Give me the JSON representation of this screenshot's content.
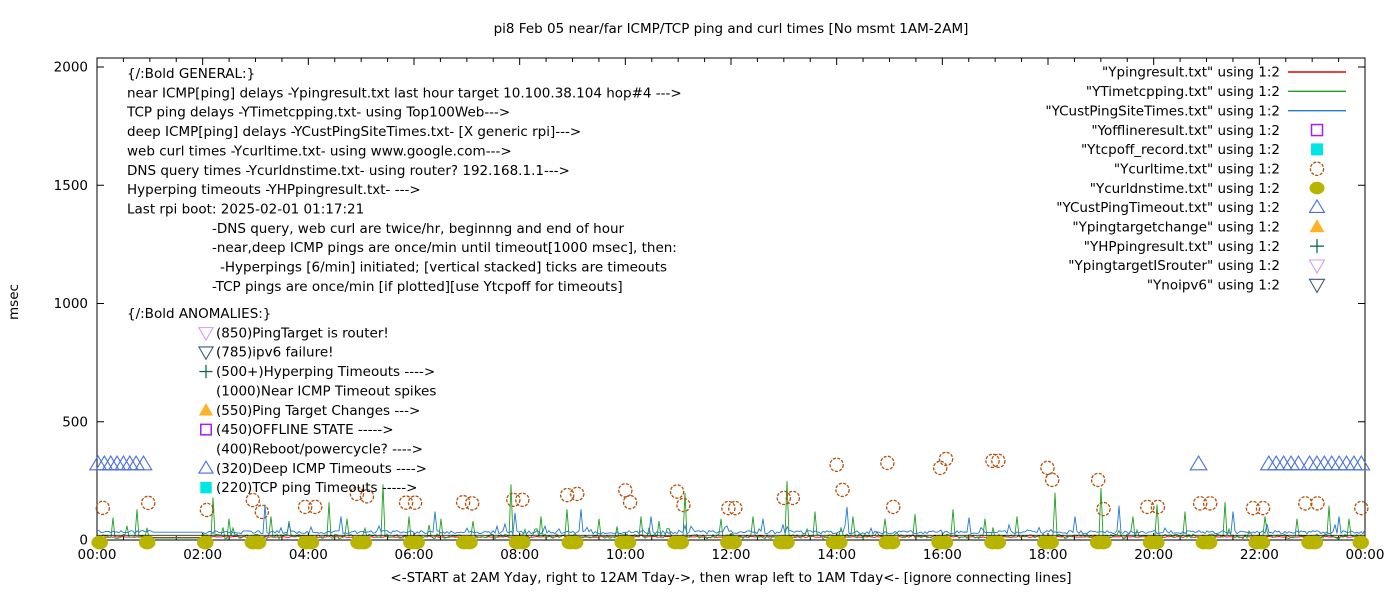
{
  "chart_data": {
    "type": "line",
    "title": "pi8 Feb 05  near/far ICMP/TCP ping and curl times [No msmt 1AM-2AM]",
    "ylabel": "msec",
    "xlabel": "<-START at 2AM Yday, right to 12AM Tday->, then wrap left to 1AM Tday<- [ignore connecting lines]",
    "ylim": [
      0,
      2000
    ],
    "xlim_hours": [
      0,
      24
    ],
    "y_ticks": [
      0,
      500,
      1000,
      1500,
      2000
    ],
    "x_tick_labels": [
      "00:00",
      "02:00",
      "04:00",
      "06:00",
      "08:00",
      "10:00",
      "12:00",
      "14:00",
      "16:00",
      "18:00",
      "20:00",
      "22:00",
      "00:00"
    ],
    "no_measurement_window_hours": [
      1,
      2
    ],
    "legend": [
      {
        "label": "\"Ypingresult.txt\" using 1:2",
        "marker": "line",
        "color": "#e60000"
      },
      {
        "label": "\"YTimetcpping.txt\" using 1:2",
        "marker": "line",
        "color": "#21a121"
      },
      {
        "label": "\"YCustPingSiteTimes.txt\" using 1:2",
        "marker": "line",
        "color": "#2479d4"
      },
      {
        "label": "\"Yofflineresult.txt\" using 1:2",
        "marker": "open-square",
        "color": "#a020f0"
      },
      {
        "label": "\"Ytcpoff_record.txt\" using 1:2",
        "marker": "filled-square",
        "color": "#00e5e5"
      },
      {
        "label": "\"Ycurltime.txt\" using 1:2",
        "marker": "open-circle",
        "color": "#b1500b"
      },
      {
        "label": "\"Ycurldnstime.txt\" using 1:2",
        "marker": "filled-circle",
        "color": "#b9b400"
      },
      {
        "label": "\"YCustPingTimeout.txt\" using 1:2",
        "marker": "open-triangle-up",
        "color": "#4b6fdc"
      },
      {
        "label": "\"Ypingtargetchange\" using 1:2",
        "marker": "filled-triangle-up",
        "color": "#ffb127"
      },
      {
        "label": "\"YHPpingresult.txt\" using 1:2",
        "marker": "plus",
        "color": "#0a6b4a"
      },
      {
        "label": "\"YpingtargetISrouter\" using 1:2",
        "marker": "open-triangle-down",
        "color": "#cf9ef2"
      },
      {
        "label": "\"Ynoipv6\" using 1:2",
        "marker": "open-triangle-down",
        "color": "#3a5a74"
      }
    ],
    "annotations": {
      "general": [
        {
          "text": "{/:Bold GENERAL:}",
          "indent": 0
        },
        {
          "text": "near ICMP[ping] delays -Ypingresult.txt last hour target 10.100.38.104 hop#4 --->",
          "indent": 0
        },
        {
          "text": "TCP ping delays -YTimetcpping.txt- using Top100Web--->",
          "indent": 0
        },
        {
          "text": "deep ICMP[ping] delays -YCustPingSiteTimes.txt- [X generic rpi]--->",
          "indent": 0
        },
        {
          "text": "web curl times -Ycurltime.txt- using www.google.com--->",
          "indent": 0
        },
        {
          "text": "DNS query times -Ycurldnstime.txt- using router? 192.168.1.1--->",
          "indent": 0
        },
        {
          "text": "Hyperping timeouts -YHPpingresult.txt- --->",
          "indent": 0
        },
        {
          "text": "Last rpi boot: 2025-02-01 01:17:21",
          "indent": 0
        },
        {
          "text": "-DNS query, web curl are twice/hr, beginnng and end of hour",
          "indent": 85
        },
        {
          "text": "-near,deep ICMP pings are once/min until timeout[1000 msec], then:",
          "indent": 85
        },
        {
          "text": "-Hyperpings [6/min] initiated; [vertical stacked] ticks are timeouts",
          "indent": 93
        },
        {
          "text": "-TCP pings are once/min [if plotted][use Ytcpoff for timeouts]",
          "indent": 85
        }
      ],
      "anomalies": [
        {
          "marker": null,
          "color": null,
          "text": "{/:Bold ANOMALIES:}"
        },
        {
          "marker": "open-triangle-down",
          "color": "#cf9ef2",
          "text": "(850)PingTarget is router!"
        },
        {
          "marker": "open-triangle-down",
          "color": "#3a5a74",
          "text": "(785)ipv6 failure!"
        },
        {
          "marker": "plus",
          "color": "#0a6b4a",
          "text": "(500+)Hyperping Timeouts ---->"
        },
        {
          "marker": null,
          "color": null,
          "text": "(1000)Near ICMP Timeout spikes"
        },
        {
          "marker": "filled-triangle-up",
          "color": "#ffb127",
          "text": "(550)Ping Target Changes --->"
        },
        {
          "marker": "open-square",
          "color": "#a020f0",
          "text": "(450)OFFLINE STATE ----->"
        },
        {
          "marker": null,
          "color": null,
          "text": "(400)Reboot/powercycle? ---->"
        },
        {
          "marker": "open-triangle-up",
          "color": "#4b6fdc",
          "text": "(320)Deep ICMP Timeouts ---->"
        },
        {
          "marker": "filled-square",
          "color": "#00e5e5",
          "text": "(220)TCP ping Timeouts ----->"
        }
      ]
    },
    "series": [
      {
        "name": "Ypingresult.txt",
        "style": "noisy-line",
        "color": "#e60000",
        "baseline": 11,
        "noise": 4,
        "gap_value": 11,
        "spikes": []
      },
      {
        "name": "YTimetcpping.txt",
        "style": "noisy-line",
        "color": "#21a121",
        "baseline": 5,
        "noise": 20,
        "gap_value": 8,
        "spikes": [
          [
            0.3,
            95
          ],
          [
            0.55,
            60
          ],
          [
            0.75,
            130
          ],
          [
            2.2,
            180
          ],
          [
            2.5,
            90
          ],
          [
            3.3,
            100
          ],
          [
            3.62,
            80
          ],
          [
            4.4,
            160
          ],
          [
            4.75,
            90
          ],
          [
            5.4,
            235
          ],
          [
            5.9,
            100
          ],
          [
            6.5,
            90
          ],
          [
            7.1,
            80
          ],
          [
            7.82,
            235
          ],
          [
            8.4,
            100
          ],
          [
            8.9,
            130
          ],
          [
            9.5,
            90
          ],
          [
            10.3,
            100
          ],
          [
            10.65,
            80
          ],
          [
            11.12,
            200
          ],
          [
            11.8,
            90
          ],
          [
            12.4,
            100
          ],
          [
            13.05,
            250
          ],
          [
            13.6,
            120
          ],
          [
            14.3,
            100
          ],
          [
            14.9,
            90
          ],
          [
            15.5,
            110
          ],
          [
            16.2,
            130
          ],
          [
            16.8,
            90
          ],
          [
            17.4,
            100
          ],
          [
            18.14,
            200
          ],
          [
            19.0,
            220
          ],
          [
            19.6,
            100
          ],
          [
            20.05,
            150
          ],
          [
            20.6,
            120
          ],
          [
            21.35,
            160
          ],
          [
            22.1,
            100
          ],
          [
            22.7,
            90
          ],
          [
            23.3,
            145
          ],
          [
            23.7,
            90
          ]
        ]
      },
      {
        "name": "YCustPingSiteTimes.txt",
        "style": "noisy-line",
        "color": "#2479d4",
        "baseline": 26,
        "noise": 14,
        "gap_value": 33,
        "spikes": [
          [
            3.18,
            150
          ],
          [
            4.6,
            100
          ],
          [
            6.4,
            120
          ],
          [
            7.9,
            115
          ],
          [
            9.15,
            130
          ],
          [
            10.5,
            100
          ],
          [
            12.6,
            90
          ],
          [
            14.2,
            140
          ],
          [
            16.5,
            95
          ],
          [
            18.5,
            100
          ],
          [
            19.33,
            145
          ],
          [
            21.5,
            120
          ],
          [
            23.5,
            100
          ]
        ]
      },
      {
        "name": "baseline-constant",
        "style": "flat-line",
        "color": "#000000",
        "baseline": 20
      },
      {
        "name": "Ycurltime.txt",
        "style": "open-circle",
        "color": "#b1500b",
        "points": [
          [
            0.11,
            136
          ],
          [
            0.97,
            157
          ],
          [
            2.08,
            127
          ],
          [
            2.95,
            169
          ],
          [
            3.12,
            119
          ],
          [
            3.94,
            140
          ],
          [
            4.13,
            140
          ],
          [
            4.92,
            195
          ],
          [
            5.11,
            185
          ],
          [
            5.85,
            158
          ],
          [
            6.02,
            158
          ],
          [
            6.93,
            160
          ],
          [
            7.1,
            155
          ],
          [
            7.88,
            170
          ],
          [
            8.05,
            170
          ],
          [
            8.9,
            190
          ],
          [
            9.09,
            195
          ],
          [
            10.0,
            210
          ],
          [
            10.09,
            160
          ],
          [
            10.98,
            205
          ],
          [
            11.1,
            148
          ],
          [
            11.95,
            135
          ],
          [
            12.08,
            135
          ],
          [
            13.0,
            178
          ],
          [
            13.17,
            178
          ],
          [
            14.0,
            318
          ],
          [
            14.11,
            212
          ],
          [
            14.96,
            326
          ],
          [
            15.07,
            140
          ],
          [
            15.96,
            305
          ],
          [
            16.07,
            343
          ],
          [
            16.95,
            335
          ],
          [
            17.06,
            335
          ],
          [
            17.99,
            305
          ],
          [
            18.08,
            254
          ],
          [
            18.95,
            254
          ],
          [
            19.05,
            131
          ],
          [
            19.88,
            140
          ],
          [
            20.08,
            140
          ],
          [
            20.88,
            155
          ],
          [
            21.07,
            155
          ],
          [
            21.88,
            135
          ],
          [
            22.07,
            135
          ],
          [
            22.87,
            155
          ],
          [
            23.1,
            155
          ],
          [
            23.93,
            135
          ]
        ]
      },
      {
        "name": "Ycurldnstime.txt",
        "style": "filled-circle",
        "color": "#b9b400",
        "value": 0,
        "times": [
          0.05,
          0.95,
          2.05,
          2.95,
          3.05,
          3.95,
          4.05,
          4.95,
          5.05,
          5.95,
          6.05,
          6.95,
          7.05,
          7.95,
          8.05,
          8.95,
          9.05,
          9.95,
          10.05,
          10.95,
          11.05,
          11.95,
          12.05,
          12.95,
          13.05,
          13.95,
          14.05,
          14.95,
          15.05,
          15.95,
          16.05,
          16.95,
          17.05,
          17.95,
          18.05,
          18.95,
          19.05,
          19.95,
          20.05,
          20.95,
          21.05,
          21.95,
          22.05,
          22.95,
          23.05,
          23.92
        ]
      },
      {
        "name": "YCustPingTimeout.txt",
        "style": "open-triangle-up",
        "color": "#4b6fdc",
        "value": 320,
        "times": [
          0.02,
          0.14,
          0.26,
          0.38,
          0.5,
          0.62,
          0.74,
          0.88,
          20.85,
          22.18,
          22.32,
          22.46,
          22.6,
          22.74,
          22.95,
          23.09,
          23.23,
          23.37,
          23.51,
          23.65,
          23.79,
          23.93
        ]
      }
    ]
  }
}
